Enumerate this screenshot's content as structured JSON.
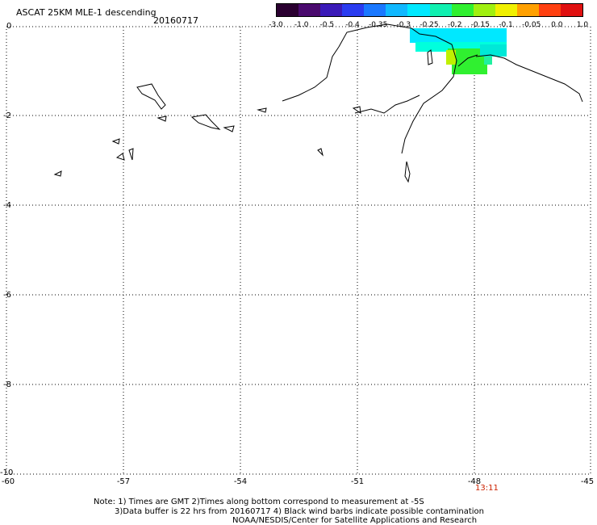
{
  "header": {
    "title": "ASCAT 25KM MLE-1 descending",
    "date": "20160717"
  },
  "colorbar": {
    "ticks": [
      "-3.0",
      "-1.0",
      "-0.5",
      "-0.4",
      "-0.35",
      "-0.3",
      "-0.25",
      "-0.2",
      "-0.15",
      "-0.1",
      "-0.05",
      "0.0",
      "1.0"
    ],
    "colors": [
      "#2a0030",
      "#4a0a6e",
      "#3a1ab8",
      "#2a3cf0",
      "#1a78ff",
      "#10b8ff",
      "#00e8ff",
      "#10f0b0",
      "#30f030",
      "#a0f010",
      "#f0f000",
      "#ffa000",
      "#ff4010",
      "#e01010"
    ]
  },
  "map": {
    "y_axis_labels": [
      "0",
      "-2",
      "-4",
      "-6",
      "-8",
      "-10"
    ],
    "x_axis_labels": [
      "-60",
      "-57",
      "-54",
      "-51",
      "-48",
      "-45"
    ],
    "grid": "dotted",
    "pass_time": "13:11"
  },
  "footer": {
    "note_line1": "Note: 1) Times are GMT 2)Times along bottom correspond to measurement at -5S",
    "note_line2": "3)Data buffer is 22 hrs from 20160717 4) Black wind barbs indicate possible contamination",
    "credit": "NOAA/NESDIS/Center for Satellite Applications and Research"
  }
}
